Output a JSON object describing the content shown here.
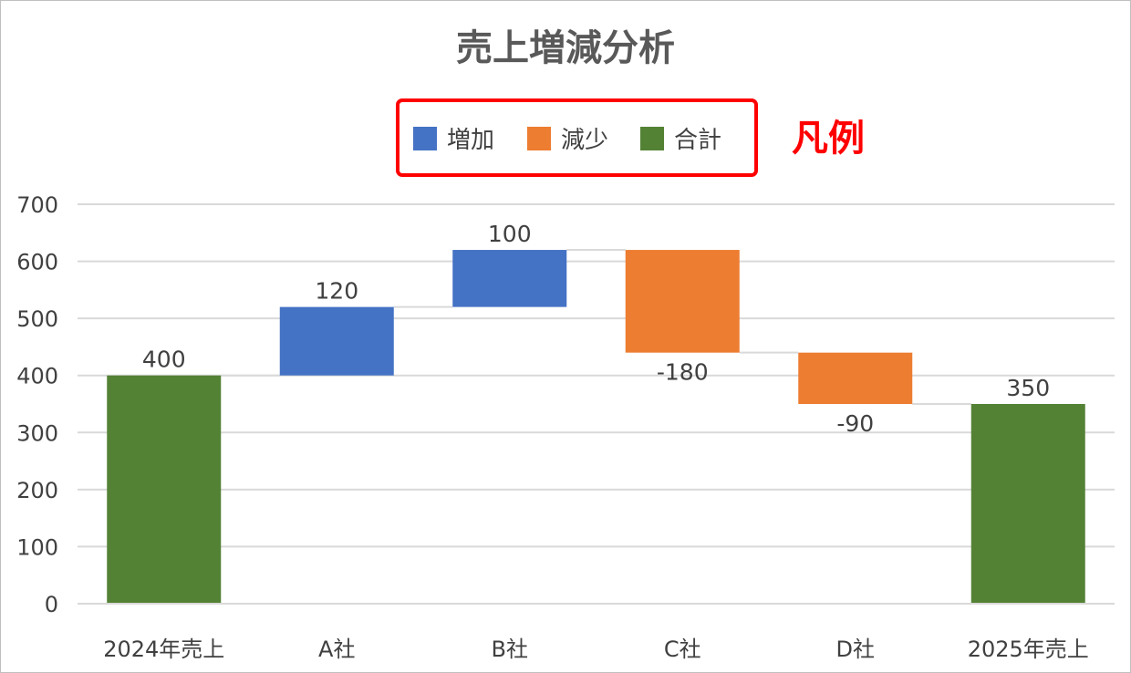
{
  "chart_data": {
    "type": "waterfall",
    "title": "売上増減分析",
    "categories": [
      "2024年売上",
      "A社",
      "B社",
      "C社",
      "D社",
      "2025年売上"
    ],
    "values": [
      400,
      120,
      100,
      -180,
      -90,
      350
    ],
    "kinds": [
      "total",
      "increase",
      "increase",
      "decrease",
      "decrease",
      "total"
    ],
    "data_labels": [
      "400",
      "120",
      "100",
      "-180",
      "-90",
      "350"
    ],
    "legend": [
      {
        "name": "増加",
        "color": "#4472c4"
      },
      {
        "name": "減少",
        "color": "#ed7d31"
      },
      {
        "name": "合計",
        "color": "#548235"
      }
    ],
    "legend_position": "top",
    "callout_label": "凡例",
    "callout_color": "#ff0000",
    "ylim": [
      0,
      700
    ],
    "yticks": [
      0,
      100,
      200,
      300,
      400,
      500,
      600,
      700
    ],
    "grid": true,
    "xlabel": "",
    "ylabel": ""
  }
}
